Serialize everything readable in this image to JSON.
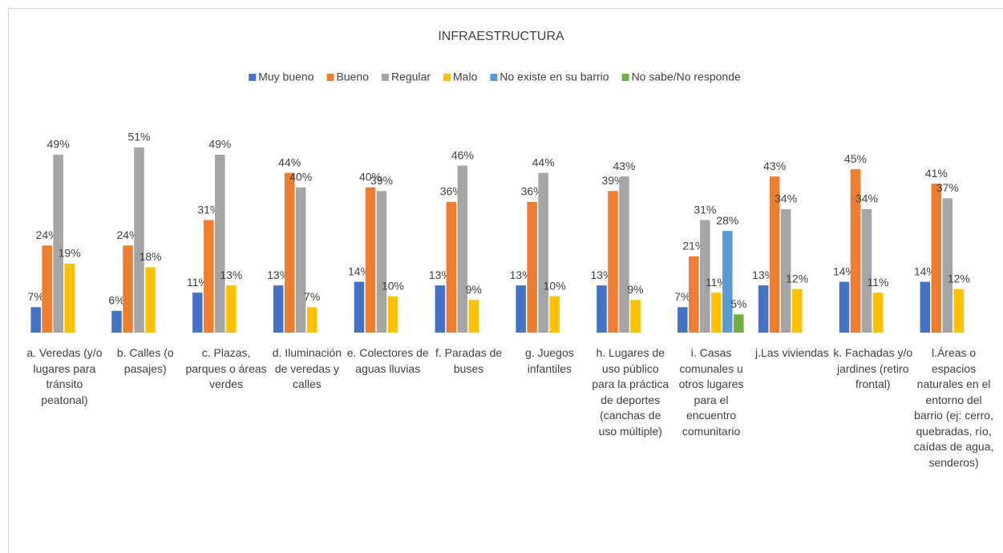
{
  "chart_data": {
    "type": "bar",
    "title": "INFRAESTRUCTURA",
    "categories": [
      "a. Veredas (y/o lugares para tránsito peatonal)",
      "b. Calles (o pasajes)",
      "c. Plazas, parques o áreas verdes",
      "d. Iluminación de veredas y calles",
      "e. Colectores de aguas lluvias",
      "f. Paradas de buses",
      "g. Juegos infantiles",
      "h. Lugares de uso público para la práctica de deportes (canchas de uso múltiple)",
      "i. Casas comunales u otros lugares para el encuentro comunitario",
      "j.Las viviendas",
      "k. Fachadas y/o jardines (retiro frontal)",
      "l.Áreas o espacios naturales en el entorno del barrio (ej: cerro, quebradas, río, caídas de agua, senderos)"
    ],
    "ylim": [
      0,
      60
    ],
    "legend": "top",
    "series": [
      {
        "name": "Muy bueno",
        "color": "#4472c4",
        "values": [
          7,
          6,
          11,
          13,
          14,
          13,
          13,
          13,
          7,
          13,
          14,
          14
        ],
        "value_labels": [
          "7%",
          "6%",
          "11%",
          "13%",
          "14%",
          "13%",
          "13%",
          "13%",
          "7%",
          "13%",
          "14%",
          "14%"
        ]
      },
      {
        "name": "Bueno",
        "color": "#ed7d31",
        "values": [
          24,
          24,
          31,
          44,
          40,
          36,
          36,
          39,
          21,
          43,
          45,
          41
        ],
        "value_labels": [
          "24%",
          "24%",
          "31%",
          "44%",
          "40%",
          "36%",
          "36%",
          "39%",
          "21%",
          "43%",
          "45%",
          "41%"
        ]
      },
      {
        "name": "Regular",
        "color": "#a5a5a5",
        "values": [
          49,
          51,
          49,
          40,
          39,
          46,
          44,
          43,
          31,
          34,
          34,
          37
        ],
        "value_labels": [
          "49%",
          "51%",
          "49%",
          "40%",
          "39%",
          "46%",
          "44%",
          "43%",
          "31%",
          "34%",
          "34%",
          "37%"
        ]
      },
      {
        "name": "Malo",
        "color": "#ffc000",
        "values": [
          19,
          18,
          13,
          7,
          10,
          9,
          10,
          9,
          11,
          12,
          11,
          12
        ],
        "value_labels": [
          "19%",
          "18%",
          "13%",
          "7%",
          "10%",
          "9%",
          "10%",
          "9%",
          "11%",
          "12%",
          "11%",
          "12%"
        ]
      },
      {
        "name": "No existe en su barrio",
        "color": "#5b9bd5",
        "values": [
          null,
          null,
          null,
          null,
          null,
          null,
          null,
          null,
          28,
          null,
          null,
          null
        ],
        "value_labels": [
          null,
          null,
          null,
          null,
          null,
          null,
          null,
          null,
          "28%",
          null,
          null,
          null
        ]
      },
      {
        "name": "No sabe/No responde",
        "color": "#70ad47",
        "values": [
          null,
          null,
          null,
          null,
          null,
          null,
          null,
          null,
          5,
          null,
          null,
          null
        ],
        "value_labels": [
          null,
          null,
          null,
          null,
          null,
          null,
          null,
          null,
          "5%",
          null,
          null,
          null
        ]
      }
    ]
  }
}
